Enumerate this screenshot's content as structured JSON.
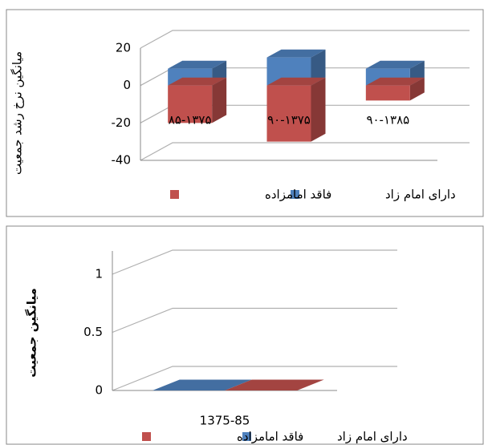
{
  "chart_data": [
    {
      "type": "bar3d",
      "stacked": true,
      "y_label": "میانگین نرخ رشد جمعیت",
      "categories": [
        "۸۵-۱۳۷۵",
        "۹۰-۱۳۷۵",
        "۹۰-۱۳۸۵"
      ],
      "series": [
        {
          "name": "دارای امام زاد",
          "color": "#4f81bd",
          "values": [
            9,
            15,
            9
          ]
        },
        {
          "name": "فاقد امامزاده",
          "color": "#c0504d",
          "values": [
            -20,
            -30,
            -8
          ]
        }
      ],
      "ylim": [
        -40,
        20
      ],
      "yticks": [
        -40,
        -20,
        0,
        20
      ],
      "grid": true
    },
    {
      "type": "bar3d",
      "stacked": false,
      "y_label": "میانگین جمعیت",
      "categories": [
        "1375-85"
      ],
      "series": [
        {
          "name": "دارای امام زاد",
          "color": "#4f81bd",
          "values": [
            0
          ]
        },
        {
          "name": "فاقد امامزاده",
          "color": "#c0504d",
          "values": [
            0
          ]
        }
      ],
      "ylim": [
        0,
        1.2
      ],
      "yticks": [
        0,
        0.5,
        1
      ],
      "grid": true
    }
  ]
}
